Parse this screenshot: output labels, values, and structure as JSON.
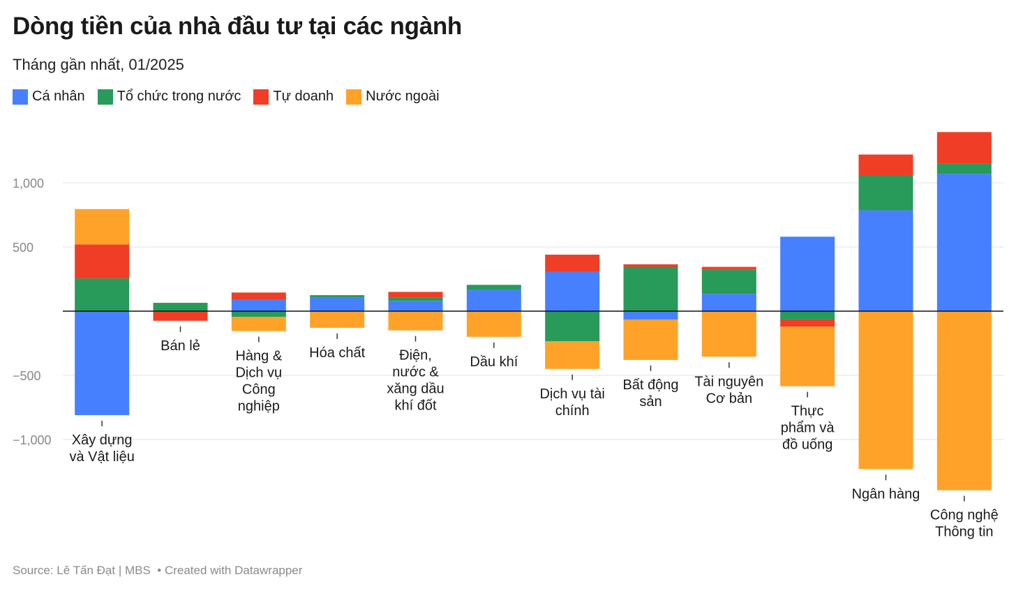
{
  "title": "Dòng tiền của nhà đầu tư tại các ngành",
  "subtitle": "Tháng gần nhất, 01/2025",
  "footer": {
    "source": "Source: Lê Tấn Đạt | MBS",
    "created": "• Created with Datawrapper"
  },
  "chart_data": {
    "type": "bar",
    "stacked": true,
    "categories": [
      "Xây dựng và Vật liệu",
      "Bán lẻ",
      "Hàng & Dịch vụ Công nghiệp",
      "Hóa chất",
      "Điện, nước & xăng dầu khí đốt",
      "Dầu khí",
      "Dịch vụ tài chính",
      "Bất động sản",
      "Tài nguyên Cơ bản",
      "Thực phẩm và đồ uống",
      "Ngân hàng",
      "Công nghệ Thông tin"
    ],
    "category_label_lines": [
      [
        "Xây dựng",
        "và Vật liệu"
      ],
      [
        "Bán lẻ"
      ],
      [
        "Hàng &",
        "Dịch vụ",
        "Công",
        "nghiệp"
      ],
      [
        "Hóa chất"
      ],
      [
        "Điện,",
        "nước &",
        "xăng dầu",
        "khí đốt"
      ],
      [
        "Dầu khí"
      ],
      [
        "Dịch vụ tài",
        "chính"
      ],
      [
        "Bất động",
        "sản"
      ],
      [
        "Tài nguyên",
        "Cơ bản"
      ],
      [
        "Thực",
        "phẩm và",
        "đồ uống"
      ],
      [
        "Ngân hàng"
      ],
      [
        "Công nghệ",
        "Thông tin"
      ]
    ],
    "series": [
      {
        "name": "Cá nhân",
        "color": "#4680ff",
        "values": [
          -810,
          -5,
          90,
          105,
          80,
          165,
          305,
          -65,
          135,
          580,
          785,
          1070
        ]
      },
      {
        "name": "Tổ chức trong nước",
        "color": "#289a5a",
        "values": [
          255,
          65,
          -45,
          15,
          25,
          40,
          -235,
          345,
          190,
          -65,
          275,
          80
        ]
      },
      {
        "name": "Tự doanh",
        "color": "#ef3e25",
        "values": [
          265,
          -70,
          55,
          5,
          45,
          0,
          135,
          20,
          20,
          -55,
          160,
          245
        ]
      },
      {
        "name": "Nước ngoài",
        "color": "#ffa229",
        "values": [
          275,
          0,
          -110,
          -130,
          -150,
          -200,
          -215,
          -315,
          -355,
          -465,
          -1230,
          -1395
        ]
      }
    ],
    "yticks": [
      1000,
      500,
      -500,
      -1000
    ],
    "ytick_labels": [
      "1,000",
      "500",
      "−500",
      "−1,000"
    ],
    "ylim": [
      -1500,
      1400
    ],
    "grid": true,
    "legend": "top-left"
  }
}
